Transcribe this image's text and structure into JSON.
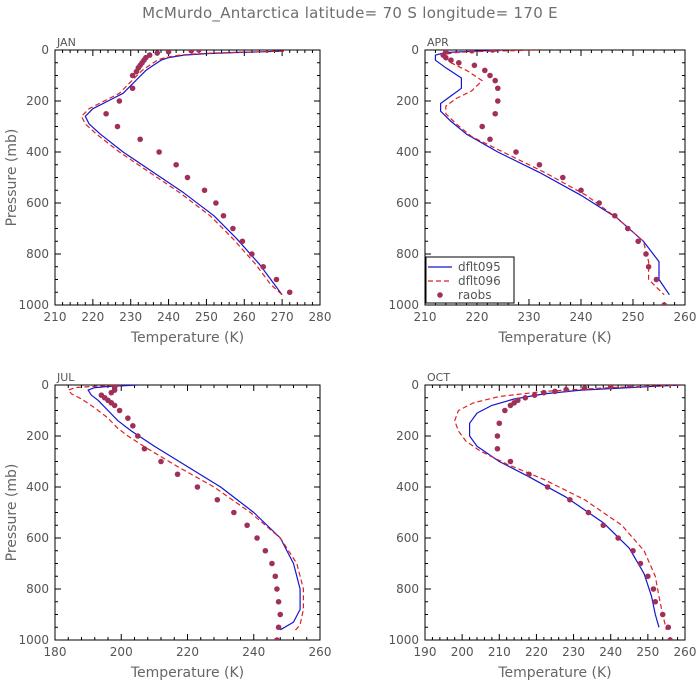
{
  "title": "McMurdo_Antarctica  latitude= 70 S longitude= 170 E",
  "colors": {
    "dflt095": "#1414d2",
    "dflt096": "#e02020",
    "raobs": "#a0305a"
  },
  "chart_data": [
    {
      "type": "line",
      "label": "JAN",
      "xlabel": "Temperature (K)",
      "ylabel": "Pressure (mb)",
      "xlim": [
        210,
        280
      ],
      "ylim": [
        1000,
        0
      ],
      "xticks": [
        210,
        220,
        230,
        240,
        250,
        260,
        270,
        280
      ],
      "yticks": [
        0,
        200,
        400,
        600,
        800,
        1000
      ],
      "series": [
        {
          "name": "dflt095",
          "style": "solid",
          "x": [
            270.5,
            265,
            258,
            250,
            244,
            240,
            238,
            236,
            234,
            232,
            230,
            228,
            224,
            220,
            218,
            219,
            222,
            228,
            236,
            244,
            252,
            258,
            264,
            268,
            270
          ],
          "y": [
            4,
            7,
            10,
            14,
            20,
            30,
            40,
            60,
            80,
            110,
            140,
            170,
            200,
            230,
            260,
            290,
            330,
            400,
            480,
            560,
            650,
            740,
            840,
            920,
            960
          ]
        },
        {
          "name": "dflt096",
          "style": "dashed",
          "x": [
            270.5,
            264,
            256,
            248,
            243,
            239,
            237,
            235,
            233,
            231,
            229,
            227,
            223,
            219,
            217,
            218,
            221,
            227,
            235,
            243,
            251,
            257,
            263,
            267,
            270
          ],
          "y": [
            4,
            7,
            10,
            14,
            20,
            30,
            40,
            60,
            80,
            110,
            140,
            170,
            200,
            230,
            260,
            290,
            330,
            400,
            480,
            560,
            650,
            740,
            840,
            920,
            960
          ]
        },
        {
          "name": "raobs",
          "style": "points",
          "x": [
            248,
            246,
            240,
            237,
            235,
            234,
            233.5,
            233,
            232.5,
            232,
            231.5,
            230.5,
            230.5,
            227,
            223.5,
            226.5,
            232.5,
            237.5,
            242,
            245,
            249.5,
            252.5,
            254.5,
            257,
            259.5,
            262,
            265,
            268.5,
            272
          ],
          "y": [
            0,
            3,
            7,
            12,
            20,
            30,
            40,
            50,
            60,
            70,
            85,
            100,
            150,
            200,
            250,
            300,
            350,
            400,
            450,
            500,
            550,
            600,
            650,
            700,
            750,
            800,
            850,
            900,
            950
          ]
        }
      ]
    },
    {
      "type": "line",
      "label": "APR",
      "xlabel": "Temperature (K)",
      "ylabel": "",
      "xlim": [
        210,
        260
      ],
      "ylim": [
        1000,
        0
      ],
      "xticks": [
        210,
        220,
        230,
        240,
        250,
        260
      ],
      "yticks": [
        0,
        200,
        400,
        600,
        800,
        1000
      ],
      "legend": "bottom-left",
      "series": [
        {
          "name": "dflt095",
          "style": "solid",
          "x": [
            225,
            219,
            214,
            212,
            212,
            214,
            217,
            217,
            215,
            213,
            213,
            215,
            218,
            224,
            232,
            240,
            247,
            252,
            255,
            255,
            257
          ],
          "y": [
            0,
            5,
            10,
            20,
            40,
            70,
            110,
            150,
            180,
            210,
            240,
            280,
            330,
            400,
            480,
            570,
            660,
            750,
            830,
            900,
            960
          ]
        },
        {
          "name": "dflt096",
          "style": "dashed",
          "x": [
            232,
            226,
            220,
            216,
            214,
            214,
            215,
            218,
            221,
            219,
            216,
            214,
            214,
            216,
            219,
            225,
            233,
            241,
            247,
            252,
            253,
            253,
            256
          ],
          "y": [
            0,
            3,
            6,
            10,
            16,
            30,
            50,
            80,
            120,
            160,
            190,
            220,
            250,
            290,
            340,
            400,
            480,
            570,
            660,
            750,
            830,
            900,
            960
          ]
        },
        {
          "name": "raobs",
          "style": "points",
          "x": [
            223,
            219,
            214,
            213.5,
            214,
            215,
            216.5,
            219.5,
            221.5,
            222.5,
            223.5,
            224,
            224,
            223.5,
            221,
            222.5,
            227.5,
            232,
            236.5,
            240,
            243.5,
            246.5,
            249,
            251,
            252.5,
            253,
            254.5,
            256
          ],
          "y": [
            0,
            3,
            7,
            20,
            30,
            40,
            50,
            60,
            80,
            100,
            120,
            150,
            200,
            250,
            300,
            350,
            400,
            450,
            500,
            550,
            600,
            650,
            700,
            750,
            800,
            850,
            900,
            1000
          ]
        }
      ]
    },
    {
      "type": "line",
      "label": "JUL",
      "xlabel": "Temperature (K)",
      "ylabel": "Pressure (mb)",
      "xlim": [
        180,
        260
      ],
      "ylim": [
        1000,
        0
      ],
      "xticks": [
        180,
        200,
        220,
        240,
        260
      ],
      "yticks": [
        0,
        200,
        400,
        600,
        800,
        1000
      ],
      "series": [
        {
          "name": "dflt095",
          "style": "solid",
          "x": [
            205,
            197,
            192,
            190,
            191,
            193,
            196,
            199,
            203,
            210,
            220,
            230,
            240,
            248,
            252,
            254,
            254,
            252,
            248
          ],
          "y": [
            0,
            5,
            10,
            20,
            40,
            60,
            100,
            140,
            180,
            240,
            320,
            400,
            500,
            600,
            700,
            800,
            880,
            930,
            960
          ]
        },
        {
          "name": "dflt096",
          "style": "dashed",
          "x": [
            200,
            192,
            186,
            184,
            185,
            188,
            192,
            196,
            199,
            202,
            208,
            217,
            228,
            239,
            248,
            253,
            255,
            255,
            254,
            252
          ],
          "y": [
            0,
            5,
            10,
            20,
            35,
            55,
            90,
            130,
            170,
            200,
            250,
            320,
            400,
            500,
            600,
            700,
            800,
            880,
            940,
            970
          ]
        },
        {
          "name": "raobs",
          "style": "points",
          "x": [
            198,
            198,
            197,
            194,
            195,
            196,
            197,
            198,
            199.5,
            202,
            203.5,
            205,
            207,
            212,
            217,
            223,
            229,
            234,
            238,
            241,
            243.5,
            245.5,
            246.5,
            247,
            247.5,
            248,
            247.5,
            247
          ],
          "y": [
            10,
            20,
            30,
            40,
            50,
            60,
            70,
            80,
            100,
            130,
            160,
            200,
            250,
            300,
            350,
            400,
            450,
            500,
            550,
            600,
            650,
            700,
            750,
            800,
            850,
            900,
            950,
            1000
          ]
        }
      ]
    },
    {
      "type": "line",
      "label": "OCT",
      "xlabel": "Temperature (K)",
      "ylabel": "",
      "xlim": [
        190,
        260
      ],
      "ylim": [
        1000,
        0
      ],
      "xticks": [
        190,
        200,
        210,
        220,
        230,
        240,
        250,
        260
      ],
      "yticks": [
        0,
        200,
        400,
        600,
        800,
        1000
      ],
      "series": [
        {
          "name": "dflt095",
          "style": "solid",
          "x": [
            259,
            245,
            232,
            222,
            214,
            208,
            204,
            202,
            202,
            204,
            210,
            218,
            228,
            238,
            245,
            249,
            251,
            252,
            253
          ],
          "y": [
            0,
            10,
            20,
            35,
            55,
            80,
            110,
            150,
            200,
            240,
            300,
            360,
            440,
            540,
            640,
            740,
            830,
            900,
            950
          ]
        },
        {
          "name": "dflt096",
          "style": "dashed",
          "x": [
            259,
            240,
            222,
            210,
            203,
            199,
            198,
            199,
            201,
            205,
            212,
            222,
            233,
            243,
            249,
            252,
            253,
            254,
            255
          ],
          "y": [
            0,
            10,
            25,
            45,
            70,
            100,
            140,
            180,
            220,
            260,
            310,
            370,
            450,
            550,
            650,
            750,
            830,
            900,
            960
          ]
        },
        {
          "name": "raobs",
          "style": "points",
          "x": [
            245,
            240,
            233,
            228,
            225,
            222,
            219.5,
            217,
            215,
            214,
            213,
            211.5,
            210,
            209.5,
            209.5,
            213,
            218,
            223,
            229,
            234,
            238,
            242,
            246,
            248,
            250,
            251.5,
            252,
            254,
            255.5,
            256
          ],
          "y": [
            0,
            7,
            12,
            18,
            25,
            30,
            40,
            50,
            60,
            70,
            80,
            100,
            150,
            200,
            250,
            300,
            350,
            400,
            450,
            500,
            550,
            600,
            650,
            700,
            750,
            800,
            850,
            900,
            950,
            1000
          ]
        }
      ]
    }
  ]
}
